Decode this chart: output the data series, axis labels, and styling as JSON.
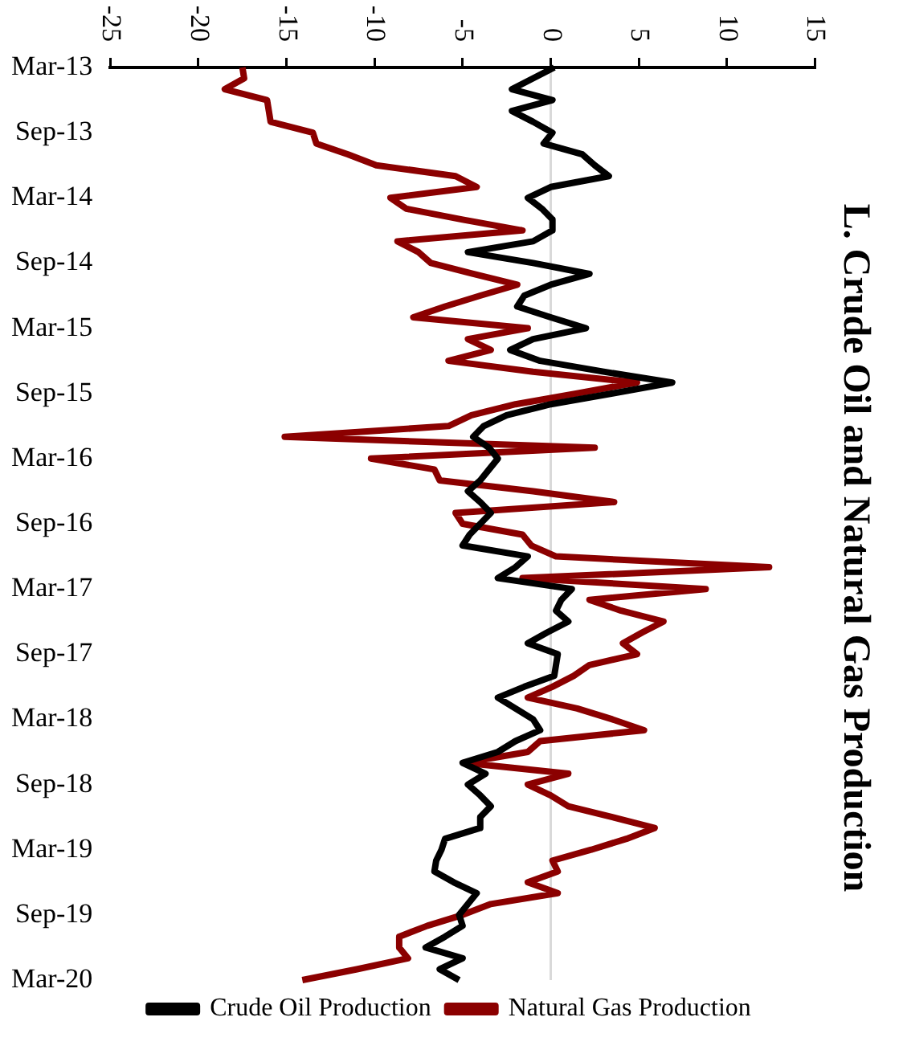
{
  "chart_data": {
    "type": "line",
    "title": "L. Crude Oil and Natural Gas Production",
    "orientation": "horizontal",
    "categories": [
      "Mar-13",
      null,
      null,
      null,
      null,
      null,
      "Sep-13",
      null,
      null,
      null,
      null,
      null,
      "Mar-14",
      null,
      null,
      null,
      null,
      null,
      "Sep-14",
      null,
      null,
      null,
      null,
      null,
      "Mar-15",
      null,
      null,
      null,
      null,
      null,
      "Sep-15",
      null,
      null,
      null,
      null,
      null,
      "Mar-16",
      null,
      null,
      null,
      null,
      null,
      "Sep-16",
      null,
      null,
      null,
      null,
      null,
      "Mar-17",
      null,
      null,
      null,
      null,
      null,
      "Sep-17",
      null,
      null,
      null,
      null,
      null,
      "Mar-18",
      null,
      null,
      null,
      null,
      null,
      "Sep-18",
      null,
      null,
      null,
      null,
      null,
      "Mar-19",
      null,
      null,
      null,
      null,
      null,
      "Sep-19",
      null,
      null,
      null,
      null,
      null,
      "Mar-20"
    ],
    "series": [
      {
        "name": "Crude Oil Production",
        "color": "#000000",
        "values": [
          0.2,
          -1,
          -2.2,
          0.1,
          -2.2,
          -1,
          0.1,
          -0.4,
          1.8,
          2.5,
          3.3,
          0,
          -1.3,
          -0.5,
          0.1,
          0.1,
          -1,
          -4.7,
          -1,
          2.2,
          0,
          -1.5,
          -1.9,
          0,
          2,
          -1,
          -2.3,
          -0.6,
          3,
          6.9,
          3.5,
          0,
          -2.5,
          -3.8,
          -4.4,
          -3.5,
          -3,
          -3.5,
          -4,
          -4.7,
          -4,
          -3.4,
          -4,
          -4.6,
          -5,
          -1.3,
          -2,
          -3,
          1.2,
          0.6,
          0.3,
          1,
          -0.2,
          -1.3,
          0.4,
          0.3,
          0.2,
          -1.5,
          -3,
          -2,
          -1,
          -0.6,
          -2,
          -3,
          -5,
          -3.7,
          -4.7,
          -4,
          -3.4,
          -4,
          -4,
          -6,
          -6.2,
          -6.5,
          -6.6,
          -5.5,
          -4.2,
          -4.7,
          -5.2,
          -5,
          -6,
          -7.1,
          -5,
          -6.3,
          -5.2
        ]
      },
      {
        "name": "Natural Gas Production",
        "color": "#8b0000",
        "values": [
          -17.5,
          -17.4,
          -18.5,
          -16.1,
          -16,
          -15.9,
          -13.5,
          -13.3,
          -11.5,
          -9.9,
          -5.4,
          -4.2,
          -9.1,
          -8.2,
          -5,
          -1.6,
          -8.7,
          -7.5,
          -6.8,
          -4.4,
          -1.9,
          -4,
          -6,
          -7.8,
          -1.3,
          -4.7,
          -3.4,
          -5.8,
          -1,
          4.9,
          1.5,
          -2,
          -4.5,
          -5.8,
          -15.1,
          2.5,
          -10.2,
          -6.6,
          -6.3,
          -1,
          3.6,
          -5.4,
          -5,
          -1.6,
          -1.1,
          0.3,
          12.4,
          -1.6,
          8.8,
          2.2,
          4,
          6.4,
          5.2,
          4.1,
          4.9,
          2.2,
          1.3,
          0.1,
          -1.3,
          1.5,
          3.5,
          5.3,
          -0.6,
          -1.3,
          -4.9,
          1,
          -1.3,
          0,
          1,
          3.5,
          5.9,
          4.3,
          2.3,
          0.1,
          0.4,
          -1.3,
          0.4,
          -3.4,
          -5,
          -7,
          -8.6,
          -8.6,
          -8.1,
          -11,
          -14.1
        ]
      }
    ],
    "xlim": [
      -25,
      15
    ],
    "xticks": [
      -25,
      -20,
      -15,
      -10,
      -5,
      0,
      5,
      10,
      15
    ],
    "ref_lines": [
      {
        "axis": "x",
        "value": 0,
        "color": "#d9d9d9"
      }
    ],
    "grid": false,
    "legend": "bottom",
    "marker": "none"
  }
}
